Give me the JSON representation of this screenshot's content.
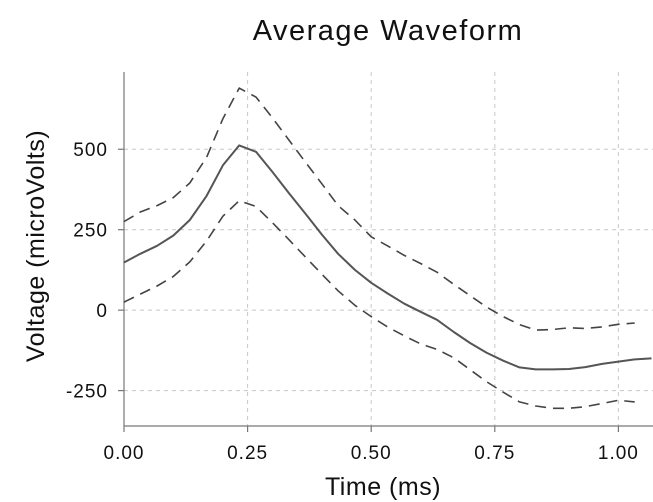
{
  "chart_data": {
    "type": "line",
    "title": "Average Waveform",
    "xlabel": "Time (ms)",
    "ylabel": "Voltage (microVolts)",
    "xlim": [
      0.0,
      1.07
    ],
    "ylim": [
      -360,
      740
    ],
    "xticks": [
      0.0,
      0.25,
      0.5,
      0.75,
      1.0
    ],
    "xtick_labels": [
      "0.00",
      "0.25",
      "0.50",
      "0.75",
      "1.00"
    ],
    "yticks": [
      -250,
      0,
      250,
      500
    ],
    "ytick_labels": [
      "-250",
      "0",
      "250",
      "500"
    ],
    "grid": true,
    "series": [
      {
        "style": "solid",
        "color": "#555555",
        "x": [
          0.0,
          0.033,
          0.067,
          0.1,
          0.133,
          0.167,
          0.2,
          0.233,
          0.267,
          0.3,
          0.333,
          0.367,
          0.4,
          0.433,
          0.467,
          0.5,
          0.533,
          0.567,
          0.6,
          0.633,
          0.667,
          0.7,
          0.733,
          0.767,
          0.8,
          0.833,
          0.867,
          0.9,
          0.933,
          0.967,
          1.0,
          1.033,
          1.067
        ],
        "y": [
          148,
          175,
          200,
          232,
          280,
          355,
          450,
          512,
          492,
          430,
          365,
          300,
          235,
          175,
          125,
          85,
          52,
          20,
          -5,
          -30,
          -68,
          -102,
          -132,
          -157,
          -178,
          -184,
          -184,
          -183,
          -177,
          -167,
          -160,
          -153,
          -150
        ]
      },
      {
        "style": "dashed",
        "color": "#444444",
        "x": [
          0.0,
          0.033,
          0.067,
          0.1,
          0.133,
          0.167,
          0.2,
          0.233,
          0.267,
          0.3,
          0.333,
          0.367,
          0.4,
          0.433,
          0.467,
          0.5,
          0.533,
          0.567,
          0.6,
          0.633,
          0.667,
          0.7,
          0.733,
          0.767,
          0.8,
          0.833,
          0.867,
          0.9,
          0.933,
          0.967,
          1.0,
          1.033
        ],
        "y": [
          275,
          305,
          325,
          350,
          395,
          475,
          595,
          690,
          662,
          598,
          530,
          460,
          393,
          325,
          280,
          228,
          200,
          170,
          145,
          118,
          80,
          45,
          10,
          -20,
          -45,
          -62,
          -60,
          -55,
          -57,
          -52,
          -44,
          -40
        ]
      },
      {
        "style": "dashed",
        "color": "#444444",
        "x": [
          0.0,
          0.033,
          0.067,
          0.1,
          0.133,
          0.167,
          0.2,
          0.233,
          0.267,
          0.3,
          0.333,
          0.367,
          0.4,
          0.433,
          0.467,
          0.5,
          0.533,
          0.567,
          0.6,
          0.633,
          0.667,
          0.7,
          0.733,
          0.767,
          0.8,
          0.833,
          0.867,
          0.9,
          0.933,
          0.967,
          1.0,
          1.033
        ],
        "y": [
          25,
          50,
          75,
          105,
          150,
          215,
          292,
          340,
          322,
          272,
          220,
          165,
          112,
          60,
          15,
          -20,
          -52,
          -80,
          -105,
          -122,
          -148,
          -185,
          -222,
          -255,
          -285,
          -298,
          -305,
          -305,
          -300,
          -290,
          -280,
          -285
        ]
      }
    ]
  }
}
